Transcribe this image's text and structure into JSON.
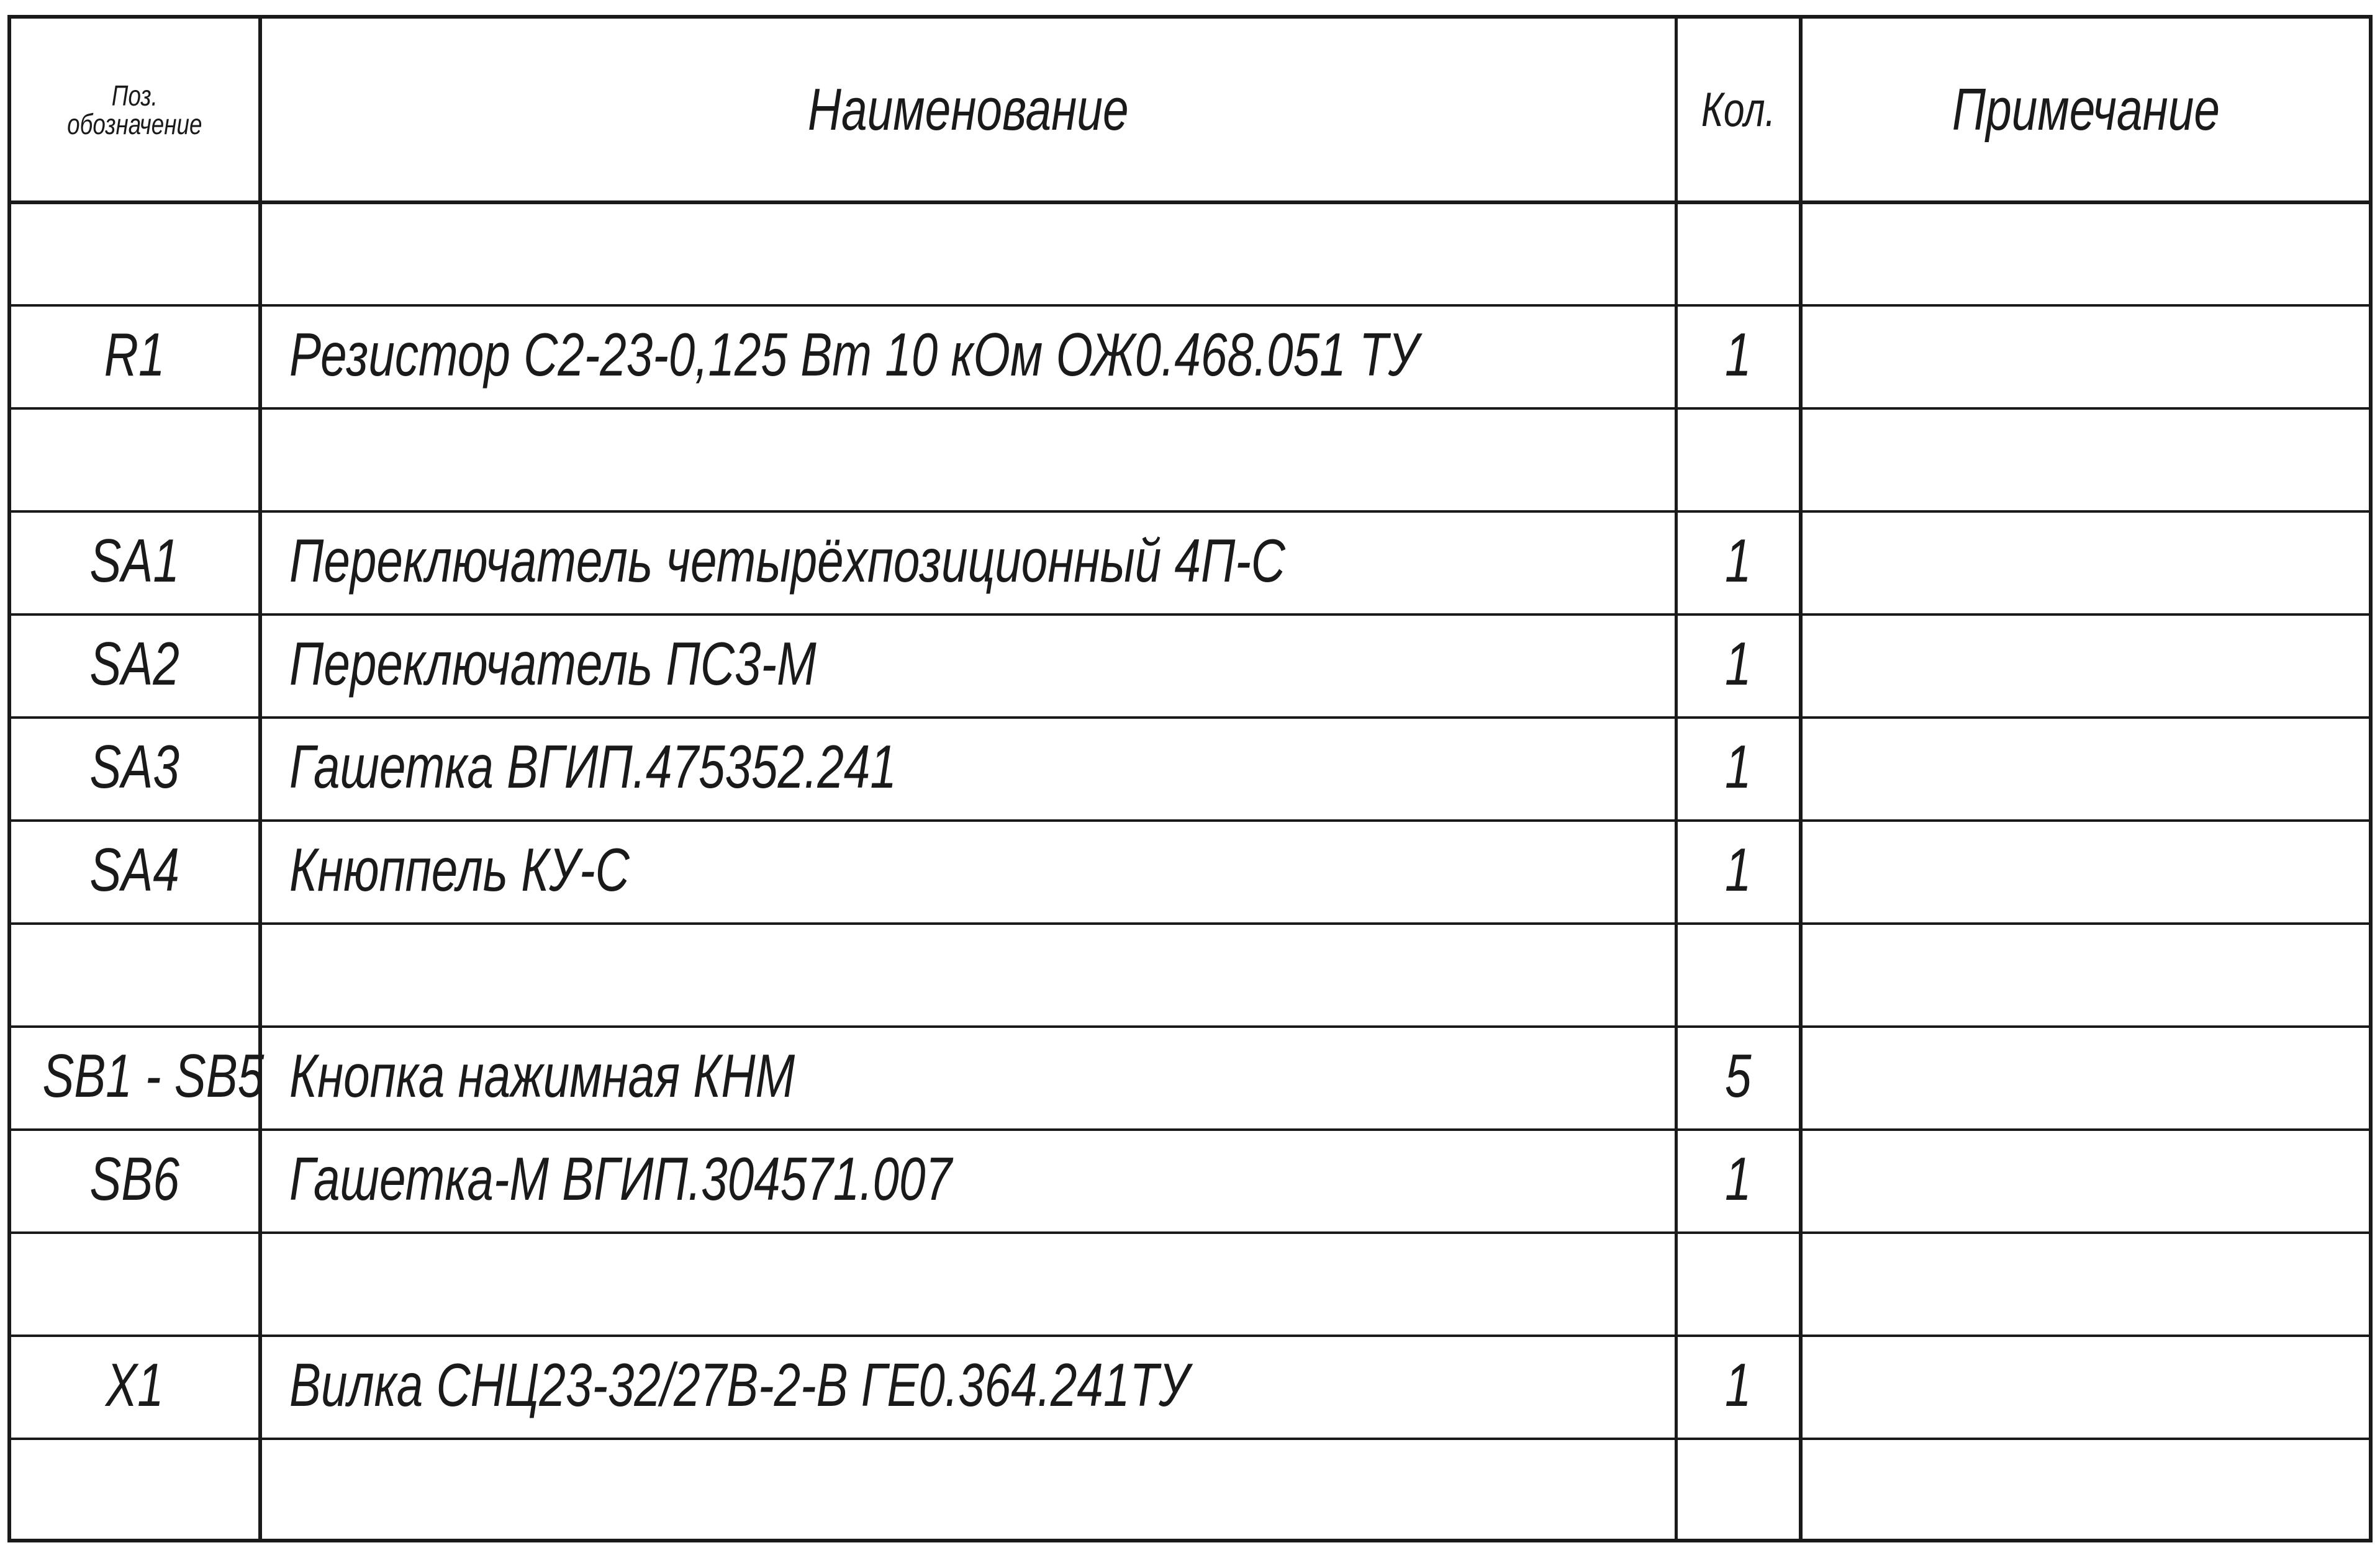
{
  "header": {
    "position_label_line1": "Поз.",
    "position_label_line2": "обозначение",
    "name_label": "Наименование",
    "qty_label": "Кол.",
    "note_label": "Примечание"
  },
  "rows": [
    {
      "pos": "",
      "name": "",
      "qty": "",
      "note": ""
    },
    {
      "pos": "R1",
      "name": "Резистор С2-23-0,125 Вт 10 кОм ОЖ0.468.051 ТУ",
      "qty": "1",
      "note": ""
    },
    {
      "pos": "",
      "name": "",
      "qty": "",
      "note": ""
    },
    {
      "pos": "SA1",
      "name": "Переключатель четырёхпозиционный 4П-С",
      "qty": "1",
      "note": ""
    },
    {
      "pos": "SA2",
      "name": "Переключатель ПС3-М",
      "qty": "1",
      "note": ""
    },
    {
      "pos": "SA3",
      "name": "Гашетка ВГИП.475352.241",
      "qty": "1",
      "note": ""
    },
    {
      "pos": "SA4",
      "name": "Кнюппель КУ-С",
      "qty": "1",
      "note": ""
    },
    {
      "pos": "",
      "name": "",
      "qty": "",
      "note": ""
    },
    {
      "pos": "SB1 - SB5",
      "name": "Кнопка нажимная КНМ",
      "qty": "5",
      "note": ""
    },
    {
      "pos": "SB6",
      "name": "Гашетка-М ВГИП.304571.007",
      "qty": "1",
      "note": ""
    },
    {
      "pos": "",
      "name": "",
      "qty": "",
      "note": ""
    },
    {
      "pos": "X1",
      "name": "Вилка СНЦ23-32/27В-2-В  ГЕ0.364.241ТУ",
      "qty": "1",
      "note": ""
    },
    {
      "pos": "",
      "name": "",
      "qty": "",
      "note": ""
    }
  ]
}
